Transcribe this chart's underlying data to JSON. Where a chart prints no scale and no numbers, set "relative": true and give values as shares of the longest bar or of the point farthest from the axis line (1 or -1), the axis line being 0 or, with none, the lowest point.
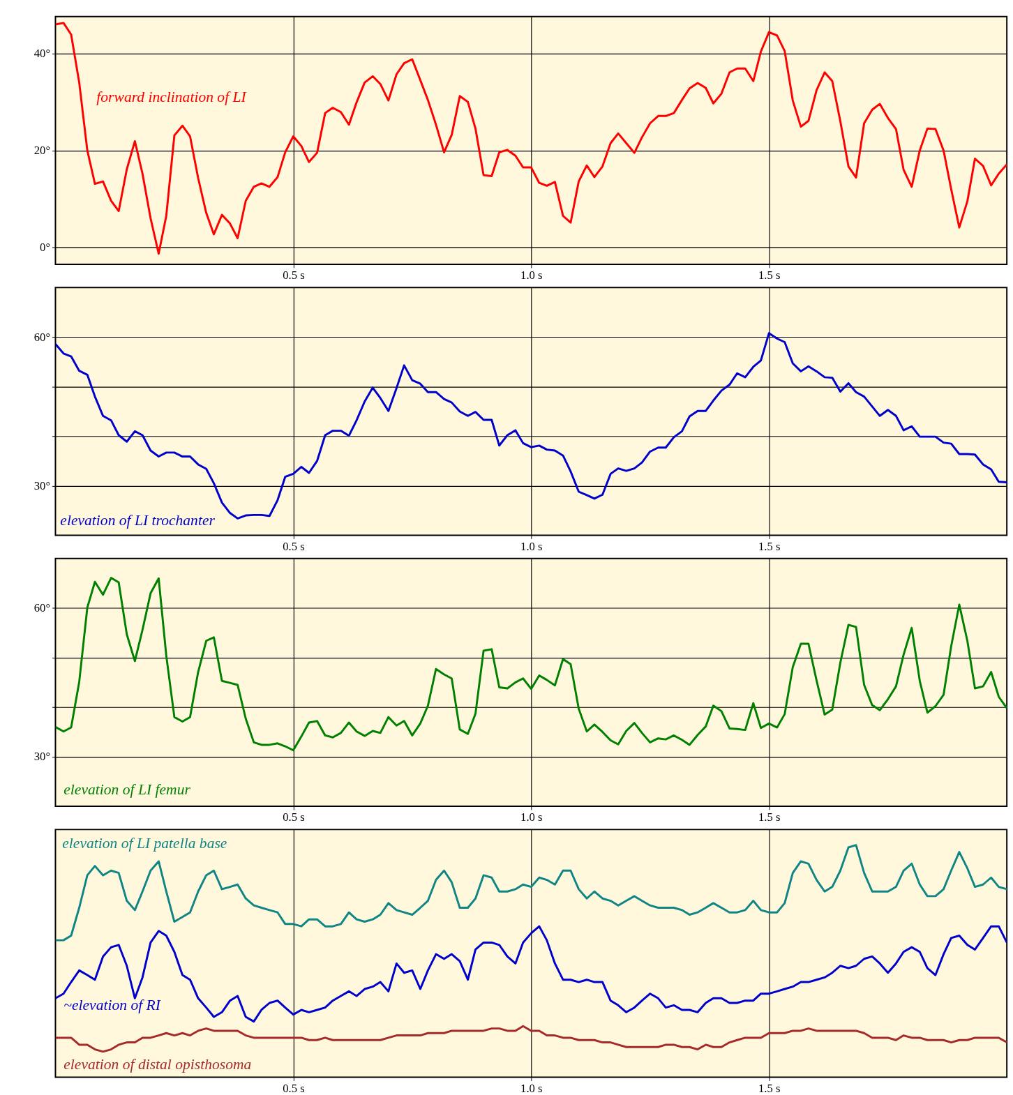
{
  "chart_data": [
    {
      "type": "line",
      "grid": true,
      "xlim": [
        0,
        2
      ],
      "ylim": [
        -3.5,
        47.6
      ],
      "xticks": [
        {
          "value": 0.5,
          "label": "0.5 s"
        },
        {
          "value": 1,
          "label": "1.0 s"
        },
        {
          "value": 1.5,
          "label": "1.5 s"
        }
      ],
      "yticks": [
        {
          "value": 0,
          "label": "0°"
        },
        {
          "value": 20,
          "label": "20°"
        },
        {
          "value": 40,
          "label": "40°"
        }
      ],
      "x": [
        0,
        0.017,
        0.033,
        0.05,
        0.067,
        0.083,
        0.1,
        0.117,
        0.133,
        0.15,
        0.167,
        0.183,
        0.2,
        0.217,
        0.233,
        0.25,
        0.267,
        0.283,
        0.3,
        0.317,
        0.333,
        0.35,
        0.367,
        0.383,
        0.4,
        0.417,
        0.433,
        0.45,
        0.467,
        0.483,
        0.5,
        0.517,
        0.533,
        0.55,
        0.567,
        0.583,
        0.6,
        0.617,
        0.633,
        0.65,
        0.667,
        0.683,
        0.7,
        0.717,
        0.733,
        0.75,
        0.767,
        0.783,
        0.8,
        0.817,
        0.833,
        0.85,
        0.867,
        0.883,
        0.9,
        0.917,
        0.933,
        0.95,
        0.967,
        0.983,
        1,
        1.017,
        1.033,
        1.05,
        1.067,
        1.083,
        1.1,
        1.117,
        1.133,
        1.15,
        1.167,
        1.183,
        1.2,
        1.217,
        1.233,
        1.25,
        1.267,
        1.283,
        1.3,
        1.317,
        1.333,
        1.35,
        1.367,
        1.383,
        1.4,
        1.417,
        1.433,
        1.45,
        1.467,
        1.483,
        1.5,
        1.517,
        1.533,
        1.55,
        1.567,
        1.583,
        1.6,
        1.617,
        1.633,
        1.65,
        1.667,
        1.683,
        1.7,
        1.717,
        1.733,
        1.75,
        1.767,
        1.783,
        1.8,
        1.817,
        1.833,
        1.85,
        1.867,
        1.883,
        1.9,
        1.917,
        1.933,
        1.95,
        1.967,
        1.983,
        2
      ],
      "series": [
        {
          "name": "forward inclination of LI",
          "color": "#ff0000",
          "values": [
            46.0,
            46.3,
            43.9,
            34.0,
            20.0,
            13.1,
            13.6,
            9.6,
            7.5,
            16.1,
            21.9,
            15.2,
            6.0,
            -1.3,
            6.5,
            23.1,
            25.1,
            22.9,
            14.3,
            7.1,
            2.7,
            6.7,
            4.9,
            1.9,
            9.6,
            12.5,
            13.2,
            12.5,
            14.5,
            19.6,
            22.9,
            20.9,
            17.6,
            19.5,
            27.7,
            28.8,
            27.9,
            25.3,
            29.9,
            34.0,
            35.3,
            33.7,
            30.3,
            35.7,
            38.0,
            38.8,
            34.5,
            30.4,
            25.3,
            19.6,
            23.2,
            31.2,
            30.0,
            24.5,
            14.9,
            14.7,
            19.6,
            20.1,
            18.9,
            16.5,
            16.5,
            13.3,
            12.7,
            13.5,
            6.5,
            5.1,
            13.6,
            16.9,
            14.5,
            16.7,
            21.5,
            23.5,
            21.5,
            19.5,
            22.7,
            25.6,
            27.1,
            27.1,
            27.7,
            30.4,
            32.8,
            33.9,
            32.9,
            29.7,
            31.7,
            36.1,
            36.9,
            36.9,
            34.3,
            40.4,
            44.4,
            43.7,
            40.5,
            30.3,
            24.9,
            26.1,
            32.4,
            36.1,
            34.3,
            26.0,
            16.7,
            14.4,
            25.6,
            28.4,
            29.6,
            26.7,
            24.4,
            16.0,
            12.5,
            20.0,
            24.5,
            24.4,
            20.0,
            12.0,
            4.1,
            9.5,
            18.3,
            16.8,
            12.8,
            15.2,
            17.1
          ]
        }
      ]
    },
    {
      "type": "line",
      "grid": true,
      "xlim": [
        0,
        2
      ],
      "ylim": [
        20,
        70
      ],
      "xticks": [
        {
          "value": 0.5,
          "label": "0.5 s"
        },
        {
          "value": 1,
          "label": "1.0 s"
        },
        {
          "value": 1.5,
          "label": "1.5 s"
        }
      ],
      "yticks": [
        {
          "value": 30,
          "label": "30°"
        },
        {
          "value": 40,
          "label": null
        },
        {
          "value": 50,
          "label": null
        },
        {
          "value": 60,
          "label": "60°"
        }
      ],
      "x": [
        0,
        0.017,
        0.033,
        0.05,
        0.067,
        0.083,
        0.1,
        0.117,
        0.133,
        0.15,
        0.167,
        0.183,
        0.2,
        0.217,
        0.233,
        0.25,
        0.267,
        0.283,
        0.3,
        0.317,
        0.333,
        0.35,
        0.367,
        0.383,
        0.4,
        0.417,
        0.433,
        0.45,
        0.467,
        0.483,
        0.5,
        0.517,
        0.533,
        0.55,
        0.567,
        0.583,
        0.6,
        0.617,
        0.633,
        0.65,
        0.667,
        0.683,
        0.7,
        0.717,
        0.733,
        0.75,
        0.767,
        0.783,
        0.8,
        0.817,
        0.833,
        0.85,
        0.867,
        0.883,
        0.9,
        0.917,
        0.933,
        0.95,
        0.967,
        0.983,
        1,
        1.017,
        1.033,
        1.05,
        1.067,
        1.083,
        1.1,
        1.117,
        1.133,
        1.15,
        1.167,
        1.183,
        1.2,
        1.217,
        1.233,
        1.25,
        1.267,
        1.283,
        1.3,
        1.317,
        1.333,
        1.35,
        1.367,
        1.383,
        1.4,
        1.417,
        1.433,
        1.45,
        1.467,
        1.483,
        1.5,
        1.517,
        1.533,
        1.55,
        1.567,
        1.583,
        1.6,
        1.617,
        1.633,
        1.65,
        1.667,
        1.683,
        1.7,
        1.717,
        1.733,
        1.75,
        1.767,
        1.783,
        1.8,
        1.817,
        1.833,
        1.85,
        1.867,
        1.883,
        1.9,
        1.917,
        1.933,
        1.95,
        1.967,
        1.983,
        2
      ],
      "series": [
        {
          "name": "elevation of LI trochanter",
          "color": "#0000cc",
          "values": [
            58.6,
            56.7,
            56.1,
            53.2,
            52.4,
            48.0,
            44.1,
            43.2,
            40.2,
            38.9,
            41.0,
            40.2,
            37.1,
            35.9,
            36.7,
            36.7,
            35.9,
            35.9,
            34.3,
            33.4,
            30.5,
            26.6,
            24.5,
            23.4,
            24.0,
            24.1,
            24.1,
            23.9,
            27.1,
            31.8,
            32.4,
            33.8,
            32.6,
            35.0,
            40.2,
            41.1,
            41.1,
            40.1,
            43.2,
            47.0,
            49.8,
            47.7,
            45.1,
            49.7,
            54.3,
            51.3,
            50.6,
            48.9,
            48.9,
            47.5,
            46.8,
            45.0,
            44.1,
            44.9,
            43.3,
            43.3,
            38.1,
            40.2,
            41.2,
            38.6,
            37.8,
            38.1,
            37.3,
            37.1,
            36.1,
            32.9,
            28.8,
            28.1,
            27.4,
            28.2,
            32.4,
            33.5,
            33.0,
            33.5,
            34.7,
            36.9,
            37.7,
            37.7,
            39.8,
            41.0,
            44.0,
            45.1,
            45.1,
            47.2,
            49.2,
            50.4,
            52.7,
            51.9,
            54.0,
            55.3,
            60.8,
            59.7,
            59.0,
            54.7,
            53.1,
            54.1,
            53.1,
            51.9,
            51.8,
            49.0,
            50.7,
            48.9,
            48.0,
            46.0,
            44.1,
            45.3,
            44.1,
            41.2,
            42.0,
            39.9,
            39.9,
            39.9,
            38.7,
            38.5,
            36.4,
            36.4,
            36.3,
            34.3,
            33.3,
            30.8,
            30.7
          ]
        }
      ]
    },
    {
      "type": "line",
      "grid": true,
      "xlim": [
        0,
        2
      ],
      "ylim": [
        20,
        70
      ],
      "xticks": [
        {
          "value": 0.5,
          "label": "0.5 s"
        },
        {
          "value": 1,
          "label": "1.0 s"
        },
        {
          "value": 1.5,
          "label": "1.5 s"
        }
      ],
      "yticks": [
        {
          "value": 30,
          "label": "30°"
        },
        {
          "value": 40,
          "label": null
        },
        {
          "value": 50,
          "label": null
        },
        {
          "value": 60,
          "label": "60°"
        }
      ],
      "x": [
        0,
        0.017,
        0.033,
        0.05,
        0.067,
        0.083,
        0.1,
        0.117,
        0.133,
        0.15,
        0.167,
        0.183,
        0.2,
        0.217,
        0.233,
        0.25,
        0.267,
        0.283,
        0.3,
        0.317,
        0.333,
        0.35,
        0.367,
        0.383,
        0.4,
        0.417,
        0.433,
        0.45,
        0.467,
        0.483,
        0.5,
        0.517,
        0.533,
        0.55,
        0.567,
        0.583,
        0.6,
        0.617,
        0.633,
        0.65,
        0.667,
        0.683,
        0.7,
        0.717,
        0.733,
        0.75,
        0.767,
        0.783,
        0.8,
        0.817,
        0.833,
        0.85,
        0.867,
        0.883,
        0.9,
        0.917,
        0.933,
        0.95,
        0.967,
        0.983,
        1,
        1.017,
        1.033,
        1.05,
        1.067,
        1.083,
        1.1,
        1.117,
        1.133,
        1.15,
        1.167,
        1.183,
        1.2,
        1.217,
        1.233,
        1.25,
        1.267,
        1.283,
        1.3,
        1.317,
        1.333,
        1.35,
        1.367,
        1.383,
        1.4,
        1.417,
        1.433,
        1.45,
        1.467,
        1.483,
        1.5,
        1.517,
        1.533,
        1.55,
        1.567,
        1.583,
        1.6,
        1.617,
        1.633,
        1.65,
        1.667,
        1.683,
        1.7,
        1.717,
        1.733,
        1.75,
        1.767,
        1.783,
        1.8,
        1.817,
        1.833,
        1.85,
        1.867,
        1.883,
        1.9,
        1.917,
        1.933,
        1.95,
        1.967,
        1.983,
        2
      ],
      "series": [
        {
          "name": "elevation of LI femur",
          "color": "#008000",
          "values": [
            36.0,
            35.1,
            35.9,
            45.1,
            60.1,
            65.3,
            62.7,
            66.1,
            65.2,
            54.7,
            49.3,
            55.6,
            63.0,
            66.0,
            50.4,
            38.0,
            37.1,
            38.0,
            47.1,
            53.4,
            54.1,
            45.3,
            44.9,
            44.5,
            37.7,
            32.9,
            32.4,
            32.4,
            32.7,
            32.1,
            31.3,
            34.1,
            36.9,
            37.2,
            34.3,
            33.9,
            34.8,
            36.9,
            35.1,
            34.2,
            35.2,
            34.8,
            38.0,
            36.3,
            37.2,
            34.3,
            36.7,
            40.3,
            47.7,
            46.6,
            45.8,
            35.5,
            34.6,
            38.7,
            51.4,
            51.7,
            44.0,
            43.8,
            45.0,
            45.8,
            43.7,
            46.4,
            45.5,
            44.4,
            49.7,
            48.7,
            39.7,
            35.1,
            36.5,
            35.0,
            33.3,
            32.5,
            35.2,
            36.8,
            34.8,
            32.9,
            33.7,
            33.5,
            34.3,
            33.4,
            32.4,
            34.4,
            36.1,
            40.3,
            39.2,
            35.7,
            35.6,
            35.4,
            40.8,
            35.8,
            36.7,
            35.9,
            38.6,
            48.1,
            52.8,
            52.8,
            45.4,
            38.5,
            39.5,
            49.0,
            56.6,
            56.2,
            44.5,
            40.4,
            39.4,
            41.6,
            44.2,
            50.6,
            56.0,
            45.3,
            38.9,
            40.2,
            42.5,
            52.3,
            60.7,
            53.4,
            43.8,
            44.2,
            47.1,
            42.1,
            39.8
          ]
        }
      ]
    },
    {
      "type": "line",
      "grid": "x",
      "relative": true,
      "tick_labels": "x",
      "xlim": [
        0,
        2
      ],
      "xticks": [
        {
          "value": 0.5,
          "label": "0.5 s"
        },
        {
          "value": 1,
          "label": "1.0 s"
        },
        {
          "value": 1.5,
          "label": "1.5 s"
        }
      ],
      "x": [
        0,
        0.017,
        0.033,
        0.05,
        0.067,
        0.083,
        0.1,
        0.117,
        0.133,
        0.15,
        0.167,
        0.183,
        0.2,
        0.217,
        0.233,
        0.25,
        0.267,
        0.283,
        0.3,
        0.317,
        0.333,
        0.35,
        0.367,
        0.383,
        0.4,
        0.417,
        0.433,
        0.45,
        0.467,
        0.483,
        0.5,
        0.517,
        0.533,
        0.55,
        0.567,
        0.583,
        0.6,
        0.617,
        0.633,
        0.65,
        0.667,
        0.683,
        0.7,
        0.717,
        0.733,
        0.75,
        0.767,
        0.783,
        0.8,
        0.817,
        0.833,
        0.85,
        0.867,
        0.883,
        0.9,
        0.917,
        0.933,
        0.95,
        0.967,
        0.983,
        1,
        1.017,
        1.033,
        1.05,
        1.067,
        1.083,
        1.1,
        1.117,
        1.133,
        1.15,
        1.167,
        1.183,
        1.2,
        1.217,
        1.233,
        1.25,
        1.267,
        1.283,
        1.3,
        1.317,
        1.333,
        1.35,
        1.367,
        1.383,
        1.4,
        1.417,
        1.433,
        1.45,
        1.467,
        1.483,
        1.5,
        1.517,
        1.533,
        1.55,
        1.567,
        1.583,
        1.6,
        1.617,
        1.633,
        1.65,
        1.667,
        1.683,
        1.7,
        1.717,
        1.733,
        1.75,
        1.767,
        1.783,
        1.8,
        1.817,
        1.833,
        1.85,
        1.867,
        1.883,
        1.9,
        1.917,
        1.933,
        1.95,
        1.967,
        1.983,
        2
      ],
      "series": [
        {
          "name": "elevation of LI patella base",
          "color": "#108585",
          "values": [
            0.59,
            0.59,
            0.61,
            0.73,
            0.87,
            0.91,
            0.87,
            0.89,
            0.88,
            0.76,
            0.72,
            0.8,
            0.89,
            0.93,
            0.8,
            0.67,
            0.69,
            0.71,
            0.8,
            0.87,
            0.89,
            0.81,
            0.82,
            0.83,
            0.77,
            0.74,
            0.73,
            0.72,
            0.71,
            0.66,
            0.66,
            0.65,
            0.68,
            0.68,
            0.65,
            0.65,
            0.66,
            0.71,
            0.68,
            0.67,
            0.68,
            0.7,
            0.75,
            0.72,
            0.71,
            0.7,
            0.73,
            0.76,
            0.85,
            0.89,
            0.84,
            0.73,
            0.73,
            0.77,
            0.87,
            0.86,
            0.8,
            0.8,
            0.81,
            0.83,
            0.82,
            0.86,
            0.85,
            0.83,
            0.89,
            0.89,
            0.81,
            0.77,
            0.8,
            0.77,
            0.76,
            0.74,
            0.76,
            0.78,
            0.76,
            0.74,
            0.73,
            0.73,
            0.73,
            0.72,
            0.7,
            0.71,
            0.73,
            0.75,
            0.73,
            0.71,
            0.71,
            0.72,
            0.76,
            0.72,
            0.71,
            0.71,
            0.75,
            0.88,
            0.93,
            0.92,
            0.85,
            0.8,
            0.82,
            0.89,
            0.99,
            1,
            0.88,
            0.8,
            0.8,
            0.8,
            0.82,
            0.89,
            0.92,
            0.83,
            0.78,
            0.78,
            0.81,
            0.89,
            0.97,
            0.9,
            0.82,
            0.83,
            0.86,
            0.82,
            0.81
          ]
        },
        {
          "name": "~elevation of RI",
          "color": "#0000cc",
          "values": [
            0.34,
            0.36,
            0.41,
            0.46,
            0.44,
            0.42,
            0.52,
            0.56,
            0.57,
            0.48,
            0.34,
            0.43,
            0.58,
            0.63,
            0.61,
            0.54,
            0.44,
            0.42,
            0.34,
            0.3,
            0.26,
            0.28,
            0.33,
            0.35,
            0.26,
            0.24,
            0.29,
            0.32,
            0.33,
            0.3,
            0.27,
            0.29,
            0.28,
            0.29,
            0.3,
            0.33,
            0.35,
            0.37,
            0.35,
            0.38,
            0.39,
            0.41,
            0.37,
            0.49,
            0.45,
            0.46,
            0.38,
            0.46,
            0.53,
            0.51,
            0.53,
            0.5,
            0.42,
            0.55,
            0.58,
            0.58,
            0.57,
            0.52,
            0.49,
            0.58,
            0.62,
            0.65,
            0.59,
            0.49,
            0.42,
            0.42,
            0.41,
            0.42,
            0.41,
            0.41,
            0.33,
            0.31,
            0.28,
            0.3,
            0.33,
            0.36,
            0.34,
            0.3,
            0.31,
            0.29,
            0.29,
            0.28,
            0.32,
            0.34,
            0.34,
            0.32,
            0.32,
            0.33,
            0.33,
            0.36,
            0.36,
            0.37,
            0.38,
            0.39,
            0.41,
            0.41,
            0.42,
            0.43,
            0.45,
            0.48,
            0.47,
            0.48,
            0.51,
            0.52,
            0.49,
            0.45,
            0.49,
            0.54,
            0.56,
            0.54,
            0.47,
            0.44,
            0.53,
            0.6,
            0.61,
            0.57,
            0.55,
            0.6,
            0.65,
            0.65,
            0.58
          ]
        },
        {
          "name": "elevation of distal opisthosoma",
          "color": "#a52a2a",
          "values": [
            0.17,
            0.17,
            0.17,
            0.14,
            0.14,
            0.12,
            0.11,
            0.12,
            0.14,
            0.15,
            0.15,
            0.17,
            0.17,
            0.18,
            0.19,
            0.18,
            0.19,
            0.18,
            0.2,
            0.21,
            0.2,
            0.2,
            0.2,
            0.2,
            0.18,
            0.17,
            0.17,
            0.17,
            0.17,
            0.17,
            0.17,
            0.17,
            0.16,
            0.16,
            0.17,
            0.16,
            0.16,
            0.16,
            0.16,
            0.16,
            0.16,
            0.16,
            0.17,
            0.18,
            0.18,
            0.18,
            0.18,
            0.19,
            0.19,
            0.19,
            0.2,
            0.2,
            0.2,
            0.2,
            0.2,
            0.21,
            0.21,
            0.2,
            0.2,
            0.22,
            0.2,
            0.2,
            0.18,
            0.18,
            0.17,
            0.17,
            0.16,
            0.16,
            0.16,
            0.15,
            0.15,
            0.14,
            0.13,
            0.13,
            0.13,
            0.13,
            0.13,
            0.14,
            0.14,
            0.13,
            0.13,
            0.12,
            0.14,
            0.13,
            0.13,
            0.15,
            0.16,
            0.17,
            0.17,
            0.17,
            0.19,
            0.19,
            0.19,
            0.2,
            0.2,
            0.21,
            0.2,
            0.2,
            0.2,
            0.2,
            0.2,
            0.2,
            0.19,
            0.17,
            0.17,
            0.17,
            0.16,
            0.18,
            0.17,
            0.17,
            0.16,
            0.16,
            0.16,
            0.15,
            0.16,
            0.16,
            0.17,
            0.17,
            0.17,
            0.17,
            0.15
          ]
        }
      ]
    }
  ]
}
